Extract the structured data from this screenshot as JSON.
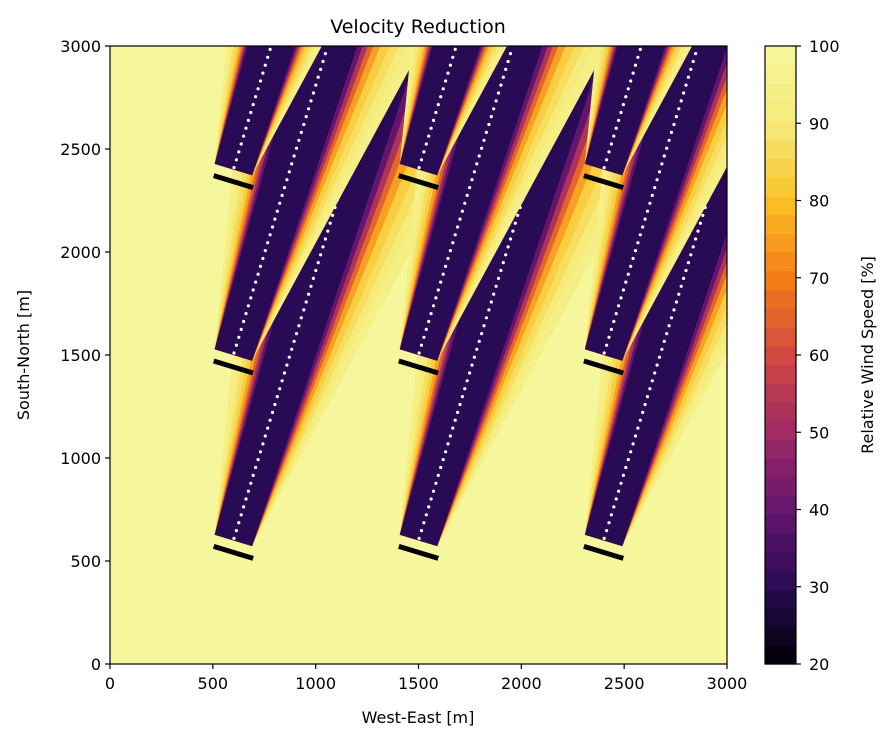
{
  "chart_data": [
    {
      "type": "heatmap",
      "title": "Velocity Reduction",
      "xlabel": "West-East [m]",
      "ylabel": "South-North [m]",
      "xlim": [
        0,
        3000
      ],
      "ylim": [
        0,
        3000
      ],
      "x_ticks": [
        0,
        500,
        1000,
        1500,
        2000,
        2500,
        3000
      ],
      "y_ticks": [
        0,
        500,
        1000,
        1500,
        2000,
        2500,
        3000
      ],
      "grid": false,
      "colormap": "inferno",
      "free_stream_value": 100,
      "turbines": [
        {
          "x": 600,
          "y": 600
        },
        {
          "x": 1500,
          "y": 600
        },
        {
          "x": 2400,
          "y": 600
        },
        {
          "x": 600,
          "y": 1500
        },
        {
          "x": 1500,
          "y": 1500
        },
        {
          "x": 2400,
          "y": 1500
        },
        {
          "x": 600,
          "y": 2400
        },
        {
          "x": 1500,
          "y": 2400
        },
        {
          "x": 2400,
          "y": 2400
        }
      ],
      "rotor_diameter": 200,
      "wake_direction_deg_from_north": 17,
      "min_wind_speed_in_wake": 30
    },
    {
      "type": "colorbar",
      "label": "Relative Wind Speed [%]",
      "range": [
        20,
        100
      ],
      "ticks": [
        20,
        30,
        40,
        50,
        60,
        70,
        80,
        90,
        100
      ],
      "levels": 33,
      "colormap": "inferno"
    }
  ]
}
